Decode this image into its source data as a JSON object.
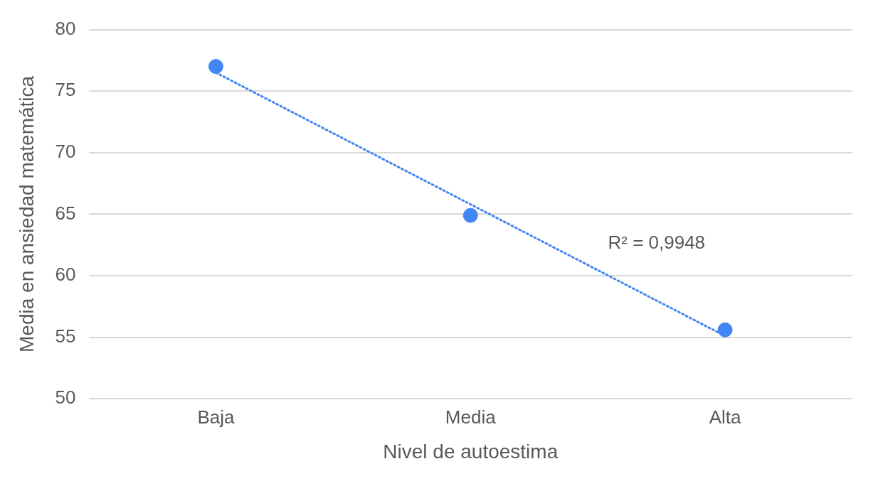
{
  "chart_data": {
    "type": "scatter",
    "xlabel": "Nivel de autoestima",
    "ylabel": "Media en ansiedad matemática",
    "categories": [
      "Baja",
      "Media",
      "Alta"
    ],
    "series": [
      {
        "color": "#4285f4",
        "values": [
          77,
          64.9,
          55.6
        ],
        "marker": "circle"
      },
      {
        "type": "line",
        "color": "#4285f4",
        "x": [
          "Baja",
          "Alta"
        ],
        "values": [
          76.5,
          55.1
        ],
        "line_style": "dotted",
        "marker": "none"
      }
    ],
    "ylim": [
      50,
      80
    ],
    "yticks": [
      50,
      55,
      60,
      65,
      70,
      75,
      80
    ],
    "grid": "y",
    "legend": false,
    "annotations": [
      "R² = 0,9948"
    ]
  }
}
